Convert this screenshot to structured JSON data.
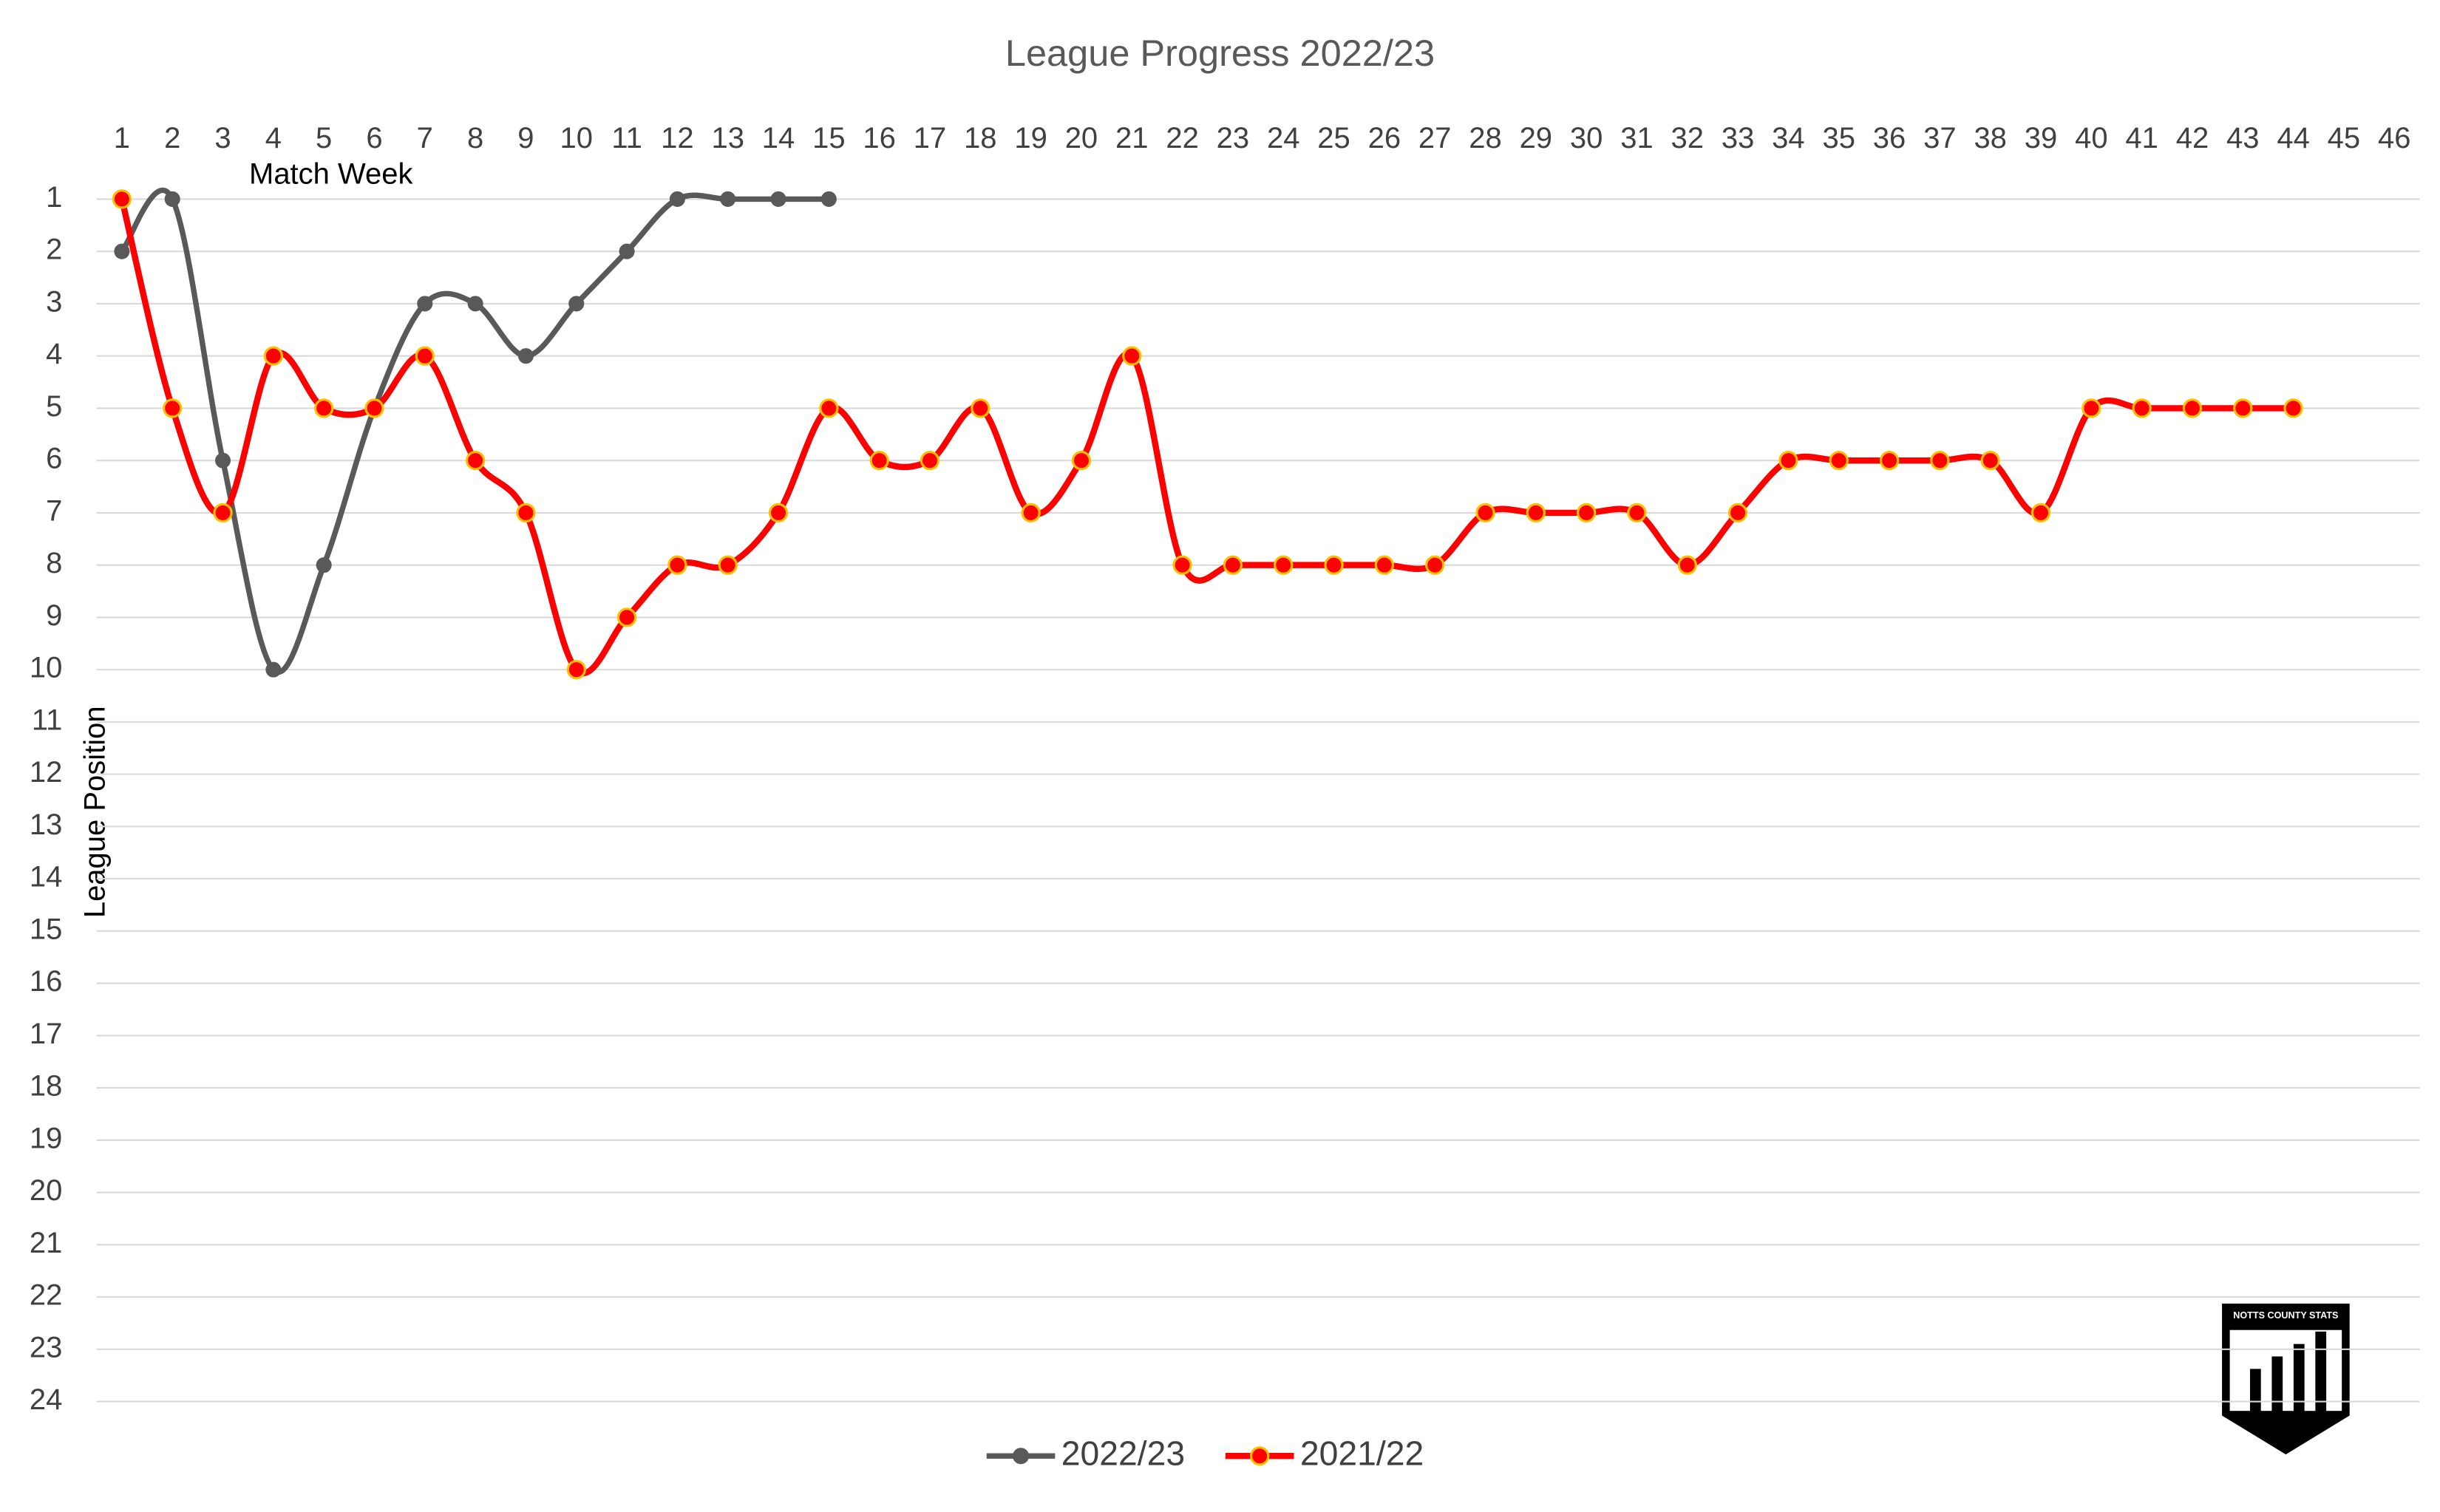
{
  "chart_data": {
    "type": "line",
    "title": "League Progress 2022/23",
    "x_label": "Match Week",
    "y_label": "League Position",
    "x": [
      1,
      2,
      3,
      4,
      5,
      6,
      7,
      8,
      9,
      10,
      11,
      12,
      13,
      14,
      15,
      16,
      17,
      18,
      19,
      20,
      21,
      22,
      23,
      24,
      25,
      26,
      27,
      28,
      29,
      30,
      31,
      32,
      33,
      34,
      35,
      36,
      37,
      38,
      39,
      40,
      41,
      42,
      43,
      44,
      45,
      46
    ],
    "series": [
      {
        "name": "2022/23",
        "color": "#595959",
        "values": [
          2,
          1,
          6,
          10,
          8,
          5,
          3,
          3,
          4,
          3,
          2,
          1,
          1,
          1,
          1,
          null,
          null,
          null,
          null,
          null,
          null,
          null,
          null,
          null,
          null,
          null,
          null,
          null,
          null,
          null,
          null,
          null,
          null,
          null,
          null,
          null,
          null,
          null,
          null,
          null,
          null,
          null,
          null,
          null,
          null,
          null
        ]
      },
      {
        "name": "2021/22",
        "color": "#ff0000",
        "values": [
          1,
          5,
          7,
          4,
          5,
          5,
          4,
          6,
          7,
          10,
          9,
          8,
          8,
          7,
          5,
          6,
          6,
          5,
          7,
          6,
          4,
          8,
          8,
          8,
          8,
          8,
          8,
          7,
          7,
          7,
          7,
          8,
          7,
          6,
          6,
          6,
          6,
          6,
          7,
          5,
          5,
          5,
          5,
          5,
          null,
          null
        ]
      }
    ],
    "xlim": [
      0.5,
      46.5
    ],
    "xticks": [
      1,
      2,
      3,
      4,
      5,
      6,
      7,
      8,
      9,
      10,
      11,
      12,
      13,
      14,
      15,
      16,
      17,
      18,
      19,
      20,
      21,
      22,
      23,
      24,
      25,
      26,
      27,
      28,
      29,
      30,
      31,
      32,
      33,
      34,
      35,
      36,
      37,
      38,
      39,
      40,
      41,
      42,
      43,
      44,
      45,
      46
    ],
    "ylim": [
      1,
      24
    ],
    "yticks": [
      1,
      2,
      3,
      4,
      5,
      6,
      7,
      8,
      9,
      10,
      11,
      12,
      13,
      14,
      15,
      16,
      17,
      18,
      19,
      20,
      21,
      22,
      23,
      24
    ],
    "y_reversed": true,
    "x_axis_position": "top",
    "smooth": true,
    "grid": true,
    "legend": "bottom"
  },
  "logo": {
    "text": "NOTTS COUNTY STATS"
  }
}
